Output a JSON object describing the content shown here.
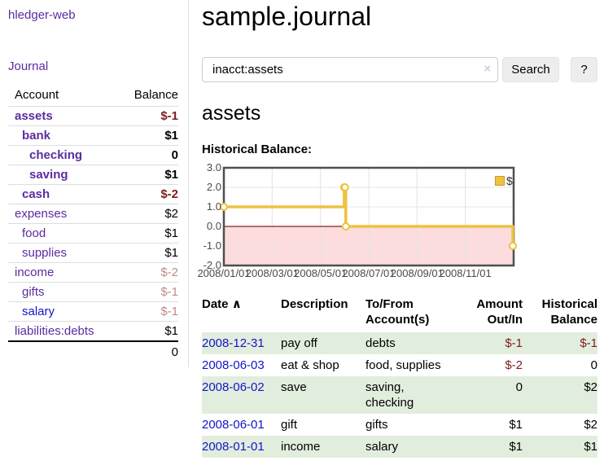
{
  "sidebar": {
    "app_title": "hledger-web",
    "nav": {
      "journal_label": "Journal"
    },
    "accounts_table": {
      "headers": {
        "account": "Account",
        "balance": "Balance"
      },
      "rows": [
        {
          "name": "assets",
          "indent": 1,
          "balance": "$-1",
          "bold": true,
          "balance_tone": "neg-strong"
        },
        {
          "name": "bank",
          "indent": 2,
          "balance": "$1",
          "bold": true,
          "balance_tone": ""
        },
        {
          "name": "checking",
          "indent": 3,
          "balance": "0",
          "bold": true,
          "balance_tone": ""
        },
        {
          "name": "saving",
          "indent": 3,
          "balance": "$1",
          "bold": true,
          "balance_tone": ""
        },
        {
          "name": "cash",
          "indent": 2,
          "balance": "$-2",
          "bold": true,
          "balance_tone": "neg-strong"
        },
        {
          "name": "expenses",
          "indent": 1,
          "balance": "$2",
          "bold": false,
          "balance_tone": ""
        },
        {
          "name": "food",
          "indent": 2,
          "balance": "$1",
          "bold": false,
          "balance_tone": ""
        },
        {
          "name": "supplies",
          "indent": 2,
          "balance": "$1",
          "bold": false,
          "balance_tone": ""
        },
        {
          "name": "income",
          "indent": 1,
          "balance": "$-2",
          "bold": false,
          "balance_tone": "neg-soft"
        },
        {
          "name": "gifts",
          "indent": 2,
          "balance": "$-1",
          "bold": false,
          "balance_tone": "neg-soft"
        },
        {
          "name": "salary",
          "indent": 2,
          "balance": "$-1",
          "bold": false,
          "balance_tone": "neg-soft",
          "link_blue": true
        },
        {
          "name": "liabilities:debts",
          "indent": 1,
          "balance": "$1",
          "bold": false,
          "balance_tone": ""
        }
      ],
      "total": "0"
    }
  },
  "header": {
    "title": "sample.journal"
  },
  "search": {
    "value": "inacct:assets",
    "clear_icon": "×",
    "button_label": "Search",
    "help_label": "?"
  },
  "account_page": {
    "title": "assets",
    "chart_label": "Historical Balance:"
  },
  "chart_data": {
    "type": "line",
    "step": true,
    "series": [
      {
        "name": "$",
        "color": "#edc240",
        "points": [
          {
            "date": "2008-01-01",
            "value": 1
          },
          {
            "date": "2008-06-01",
            "value": 2
          },
          {
            "date": "2008-06-02",
            "value": 2
          },
          {
            "date": "2008-06-03",
            "value": 0
          },
          {
            "date": "2008-12-31",
            "value": -1
          }
        ]
      }
    ],
    "x_ticks": [
      "2008/01/01",
      "2008/03/01",
      "2008/05/01",
      "2008/07/01",
      "2008/09/01",
      "2008/11/01"
    ],
    "y_ticks": [
      "3.0",
      "2.0",
      "1.0",
      "0.0",
      "-1.0",
      "-2.0"
    ],
    "ylim": [
      -2,
      3
    ],
    "x_range_days": 366,
    "x_start": "2008-01-01",
    "grid_color": "#e4e4e4",
    "border_color": "#4f4f4f",
    "negative_fill": "#fcdcdc",
    "zero_line_color": "#8b2020",
    "marker_fill": "#ffffff",
    "legend": {
      "label": "$",
      "swatch_fill": "#edc240",
      "swatch_border": "#c49a2a",
      "position": "top-right"
    }
  },
  "register_table": {
    "headers": {
      "date": "Date",
      "sort_indicator": "∧",
      "description": "Description",
      "accounts": "To/From Account(s)",
      "amount": "Amount Out/In",
      "balance": "Historical Balance"
    },
    "rows": [
      {
        "date": "2008-12-31",
        "description": "pay off",
        "accounts": [
          "debts"
        ],
        "amount": "$-1",
        "amount_negative": true,
        "balance": "$-1",
        "balance_negative": true
      },
      {
        "date": "2008-06-03",
        "description": "eat & shop",
        "accounts": [
          "food",
          "supplies"
        ],
        "amount": "$-2",
        "amount_negative": true,
        "balance": "0",
        "balance_negative": false
      },
      {
        "date": "2008-06-02",
        "description": "save",
        "accounts": [
          "saving",
          "checking"
        ],
        "amount": "0",
        "amount_negative": false,
        "balance": "$2",
        "balance_negative": false
      },
      {
        "date": "2008-06-01",
        "description": "gift",
        "accounts": [
          "gifts"
        ],
        "amount": "$1",
        "amount_negative": false,
        "balance": "$2",
        "balance_negative": false
      },
      {
        "date": "2008-01-01",
        "description": "income",
        "accounts": [
          "salary"
        ],
        "amount": "$1",
        "amount_negative": false,
        "balance": "$1",
        "balance_negative": false
      }
    ]
  }
}
